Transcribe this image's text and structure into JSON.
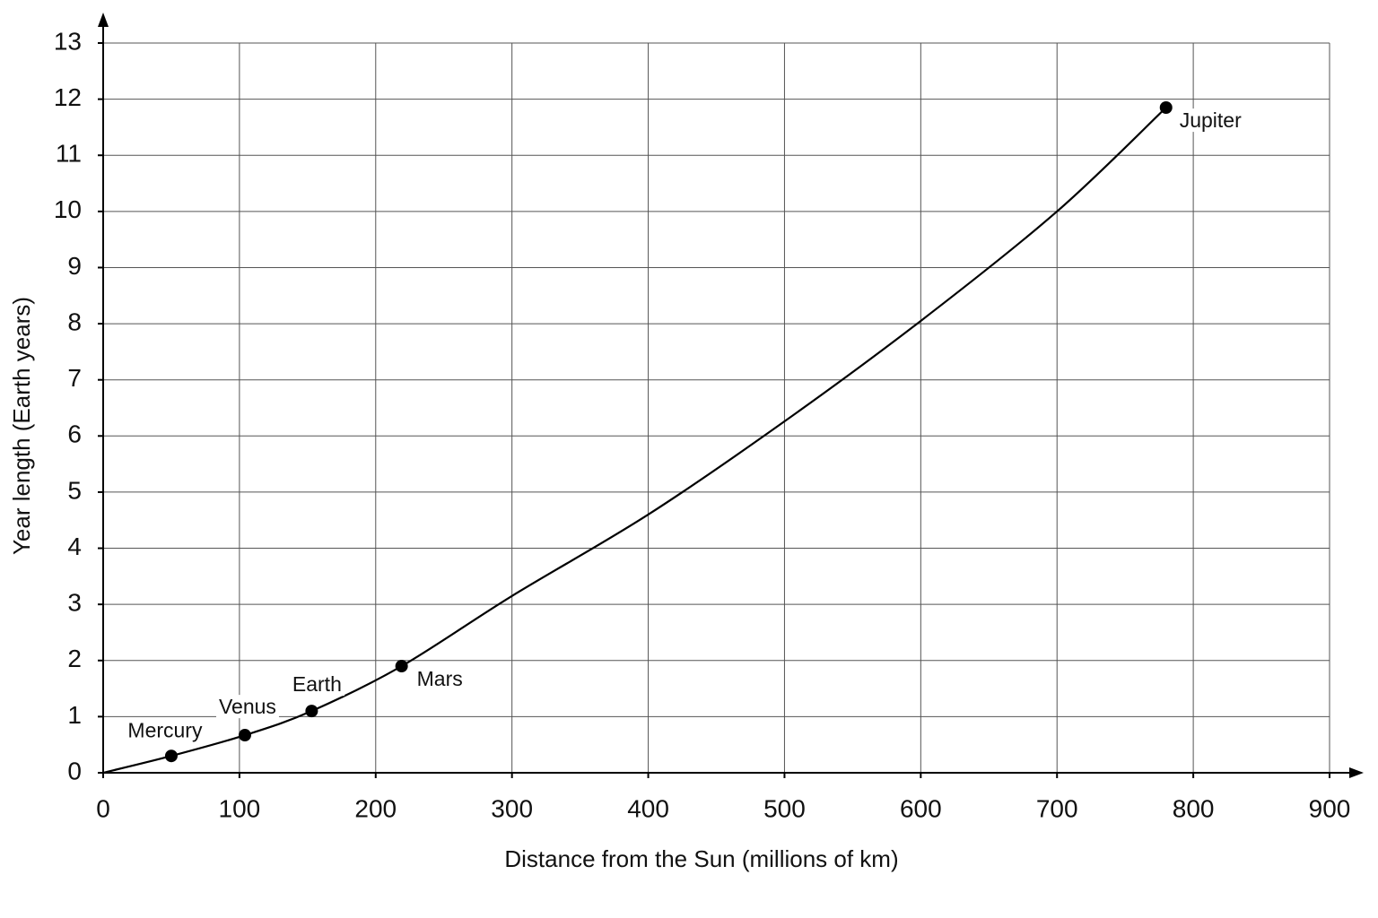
{
  "chart_data": {
    "type": "scatter",
    "xlabel": "Distance from the Sun (millions of km)",
    "ylabel": "Year length (Earth years)",
    "xlim": [
      0,
      900
    ],
    "ylim": [
      0,
      13
    ],
    "xticks": [
      0,
      100,
      200,
      300,
      400,
      500,
      600,
      700,
      800,
      900
    ],
    "yticks": [
      0,
      1,
      2,
      3,
      4,
      5,
      6,
      7,
      8,
      9,
      10,
      11,
      12,
      13
    ],
    "grid": true,
    "color": "#000000",
    "curve": {
      "x": [
        0,
        50,
        104,
        153,
        219,
        300,
        400,
        500,
        600,
        700,
        780
      ],
      "y": [
        0,
        0.3,
        0.67,
        1.1,
        1.9,
        3.15,
        4.6,
        6.26,
        8.05,
        10.0,
        11.85
      ]
    },
    "points": {
      "labels": [
        "Mercury",
        "Venus",
        "Earth",
        "Mars",
        "Jupiter"
      ],
      "x": [
        50,
        104,
        153,
        219,
        780
      ],
      "y": [
        0.3,
        0.67,
        1.1,
        1.9,
        11.85
      ]
    }
  }
}
